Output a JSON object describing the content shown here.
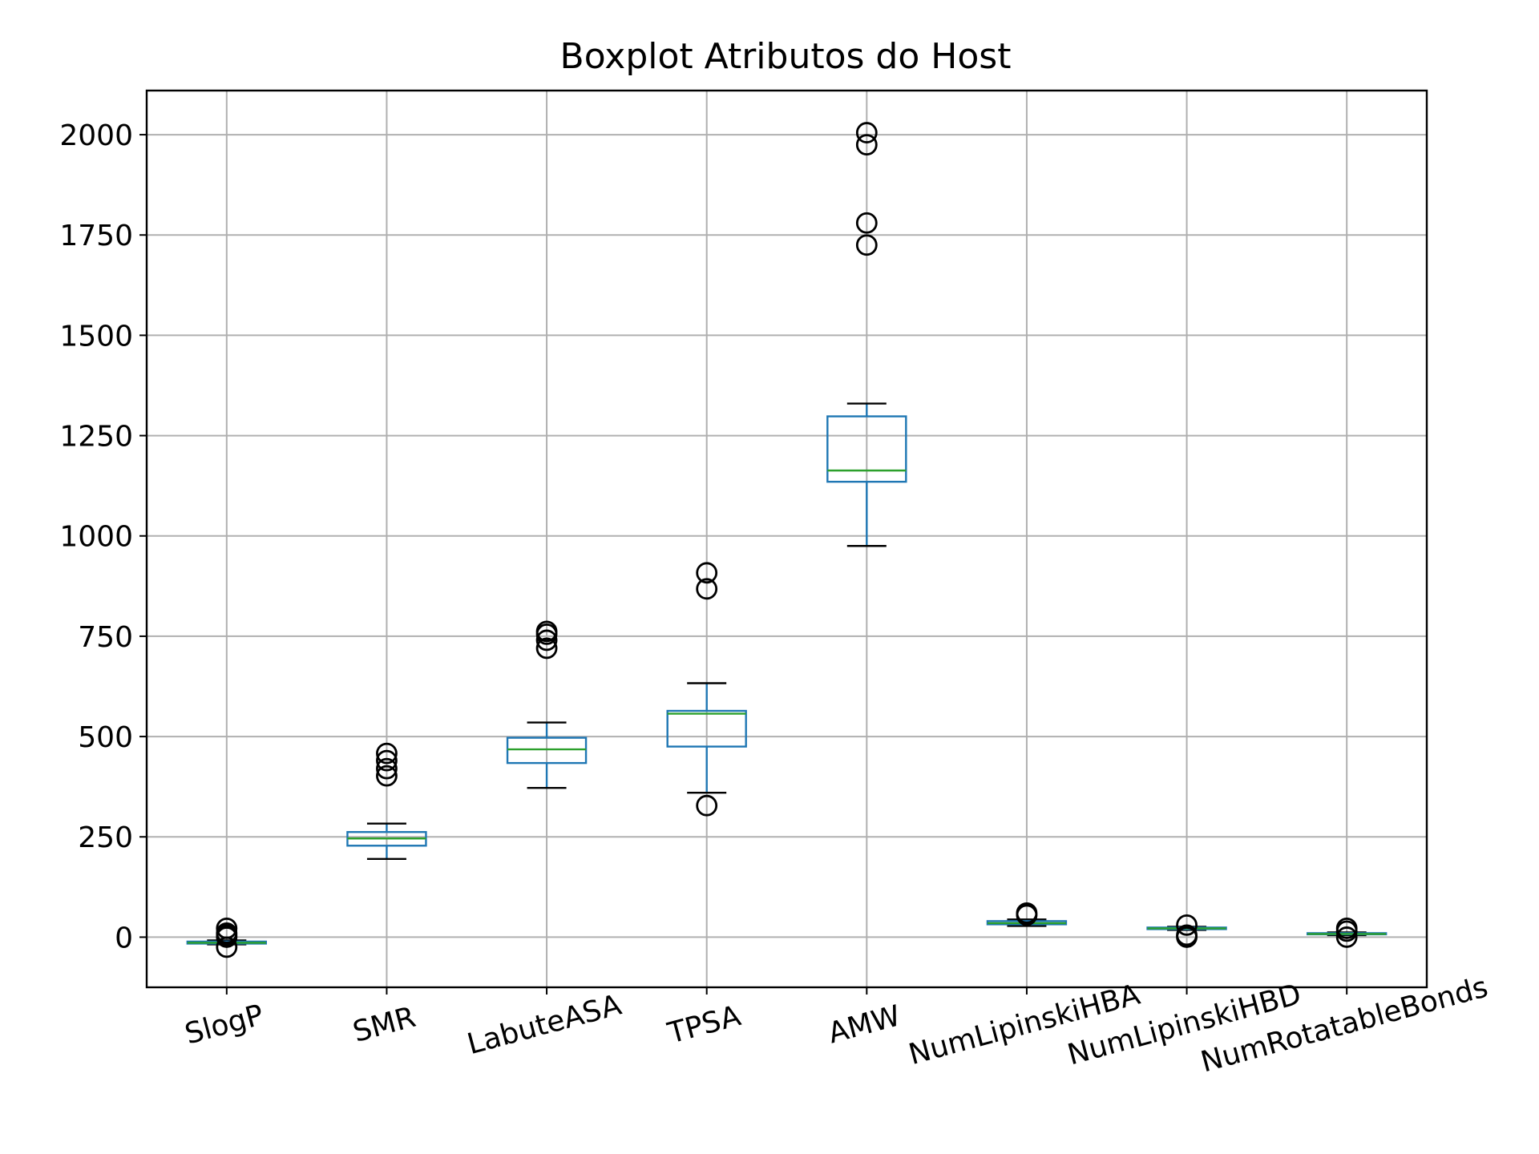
{
  "chart_data": {
    "type": "boxplot",
    "title": "Boxplot Atributos do Host",
    "xlabel": "",
    "ylabel": "",
    "ylim": [
      -125,
      2110
    ],
    "yticks": [
      0,
      250,
      500,
      750,
      1000,
      1250,
      1500,
      1750,
      2000
    ],
    "ytick_labels": [
      "0",
      "250",
      "500",
      "750",
      "1000",
      "1250",
      "1500",
      "1750",
      "2000"
    ],
    "grid": true,
    "legend": "none",
    "colors": {
      "box": "#1f77b4",
      "median": "#2ca02c",
      "cap": "#000000",
      "flier": "#000000",
      "grid": "#b0b0b0"
    },
    "categories": [
      "SlogP",
      "SMR",
      "LabuteASA",
      "TPSA",
      "AMW",
      "NumLipinskiHBA",
      "NumLipinskiHBD",
      "NumRotatableBonds"
    ],
    "boxes": [
      {
        "name": "SlogP",
        "whislo": -18,
        "q1": -16,
        "med": -14,
        "q3": -11,
        "whishi": -8,
        "fliers": [
          -25,
          0,
          5,
          10,
          22
        ]
      },
      {
        "name": "SMR",
        "whislo": 195,
        "q1": 228,
        "med": 246,
        "q3": 262,
        "whishi": 283,
        "fliers": [
          402,
          420,
          440,
          458
        ]
      },
      {
        "name": "LabuteASA",
        "whislo": 372,
        "q1": 434,
        "med": 468,
        "q3": 497,
        "whishi": 535,
        "fliers": [
          720,
          740,
          755,
          762
        ]
      },
      {
        "name": "TPSA",
        "whislo": 360,
        "q1": 475,
        "med": 557,
        "q3": 564,
        "whishi": 633,
        "fliers": [
          328,
          868,
          908
        ]
      },
      {
        "name": "AMW",
        "whislo": 975,
        "q1": 1135,
        "med": 1163,
        "q3": 1298,
        "whishi": 1330,
        "fliers": [
          1725,
          1780,
          1975,
          2005
        ]
      },
      {
        "name": "NumLipinskiHBA",
        "whislo": 28,
        "q1": 32,
        "med": 35,
        "q3": 40,
        "whishi": 44,
        "fliers": [
          55,
          60
        ]
      },
      {
        "name": "NumLipinskiHBD",
        "whislo": 18,
        "q1": 20,
        "med": 22,
        "q3": 24,
        "whishi": 26,
        "fliers": [
          0,
          5,
          30
        ]
      },
      {
        "name": "NumRotatableBonds",
        "whislo": 5,
        "q1": 7,
        "med": 8,
        "q3": 10,
        "whishi": 12,
        "fliers": [
          0,
          15,
          22
        ]
      }
    ]
  }
}
